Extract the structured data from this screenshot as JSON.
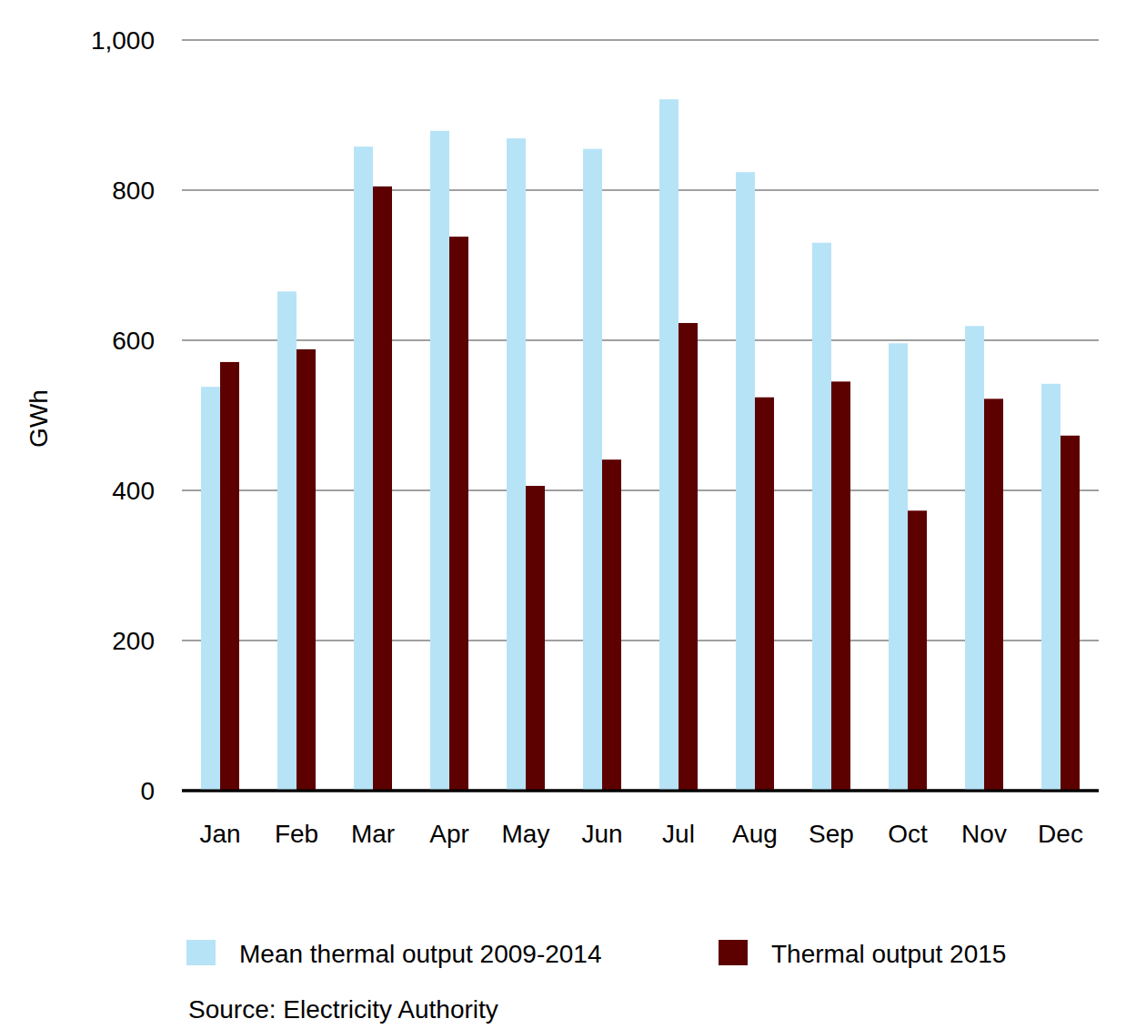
{
  "chart_data": {
    "type": "bar",
    "y_label": "GWh",
    "source": "Source: Electricity Authority",
    "categories": [
      "Jan",
      "Feb",
      "Mar",
      "Apr",
      "May",
      "Jun",
      "Jul",
      "Aug",
      "Sep",
      "Oct",
      "Nov",
      "Dec"
    ],
    "series": [
      {
        "name": "Mean thermal output 2009-2014",
        "color": "#b7e3f7",
        "values": [
          538,
          665,
          858,
          879,
          869,
          855,
          921,
          824,
          730,
          596,
          619,
          542
        ]
      },
      {
        "name": "Thermal output 2015",
        "color": "#5c0000",
        "values": [
          571,
          588,
          805,
          738,
          406,
          441,
          623,
          524,
          545,
          373,
          522,
          473
        ]
      }
    ],
    "ylim": [
      0,
      1000
    ],
    "yticks": [
      0,
      200,
      400,
      600,
      800,
      {
        "value": 1000,
        "label": "1,000"
      }
    ],
    "grid": true,
    "legend": "bottom"
  }
}
